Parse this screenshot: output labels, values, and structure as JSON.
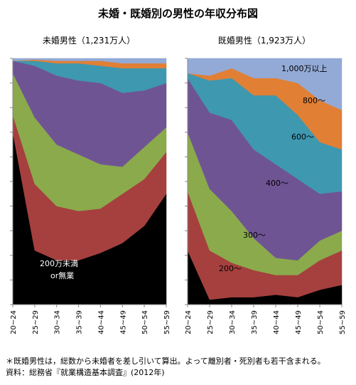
{
  "title": "未婚・既婚別の男性の年収分布図",
  "notes": {
    "note1": "＊既婚男性は，総数から未婚者を差し引いて算出。よって離別者・死別者も若干含まれる。",
    "note2": "資料：総務省『就業構造基本調査』(2012年)"
  },
  "colors": {
    "200万未満 or無業": "#000000",
    "200～": "#A5403E",
    "300～": "#8BAA4B",
    "400～": "#6F5494",
    "600～": "#3E98B0",
    "800～": "#E17F35",
    "1,000万以上": "#93AAD6"
  },
  "chart_data": [
    {
      "type": "area",
      "stacked": "percent",
      "title": "未婚男性（1,231万人）",
      "categories": [
        "20~24",
        "25~29",
        "30~34",
        "35~39",
        "40~44",
        "45~49",
        "50~54",
        "55~59"
      ],
      "series": [
        {
          "name": "200万未満 or無業",
          "values": [
            70,
            22,
            18,
            18,
            21,
            25,
            32,
            45
          ]
        },
        {
          "name": "200～",
          "values": [
            7,
            27,
            22,
            20,
            18,
            20,
            19,
            17
          ]
        },
        {
          "name": "300～",
          "values": [
            17,
            27,
            25,
            23,
            18,
            11,
            13,
            10
          ]
        },
        {
          "name": "400～",
          "values": [
            5,
            21,
            28,
            30,
            33,
            30,
            23,
            18
          ]
        },
        {
          "name": "600～",
          "values": [
            0,
            2,
            5,
            7,
            7,
            10,
            9,
            6
          ]
        },
        {
          "name": "800～",
          "values": [
            0,
            0.5,
            1,
            1,
            2,
            2,
            2,
            2
          ]
        },
        {
          "name": "1,000万以上",
          "values": [
            1,
            0.5,
            1,
            1,
            1,
            2,
            2,
            2
          ]
        }
      ],
      "labels": [
        {
          "text": "200万未満",
          "series": "200万未満 or無業"
        },
        {
          "text": "or無業",
          "series": "200万未満 or無業"
        }
      ]
    },
    {
      "type": "area",
      "stacked": "percent",
      "title": "既婚男性（1,923万人）",
      "categories": [
        "20~24",
        "25~29",
        "30~34",
        "35~39",
        "40~44",
        "45~49",
        "50~54",
        "55~59"
      ],
      "series": [
        {
          "name": "200万未満 or無業",
          "values": [
            22,
            2,
            3,
            3,
            4,
            3,
            6,
            8
          ]
        },
        {
          "name": "200～",
          "values": [
            24,
            20,
            14,
            11,
            8,
            9,
            12,
            14
          ]
        },
        {
          "name": "300～",
          "values": [
            24,
            25,
            21,
            13,
            7,
            6,
            8,
            8
          ]
        },
        {
          "name": "400～",
          "values": [
            22,
            31,
            37,
            36,
            38,
            33,
            19,
            16
          ]
        },
        {
          "name": "600～",
          "values": [
            2,
            13,
            17,
            22,
            28,
            26,
            21,
            17
          ]
        },
        {
          "name": "800～",
          "values": [
            0,
            2,
            4,
            7,
            7,
            13,
            17,
            16
          ]
        },
        {
          "name": "1,000万以上",
          "values": [
            6,
            7,
            4,
            8,
            8,
            10,
            17,
            21
          ]
        }
      ],
      "labels": [
        {
          "text": "1,000万以上",
          "series": "1,000万以上"
        },
        {
          "text": "800～",
          "series": "800～"
        },
        {
          "text": "600～",
          "series": "600～"
        },
        {
          "text": "400～",
          "series": "400～"
        },
        {
          "text": "300～",
          "series": "300～"
        },
        {
          "text": "200～",
          "series": "200～"
        }
      ]
    }
  ]
}
